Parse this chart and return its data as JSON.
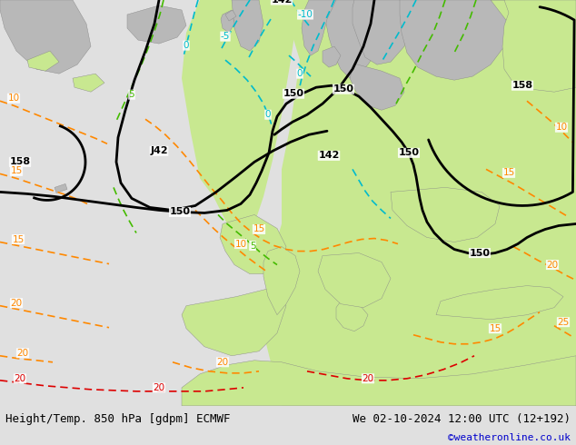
{
  "title_left": "Height/Temp. 850 hPa [gdpm] ECMWF",
  "title_right": "We 02-10-2024 12:00 UTC (12+192)",
  "watermark": "©weatheronline.co.uk",
  "bg_color": "#e0e0e0",
  "sea_color": "#d0d0d0",
  "land_gray_color": "#b8b8b8",
  "land_green_color": "#c8e890",
  "land_green2_color": "#b0dc60",
  "bottom_bar_color": "#c8c8c8",
  "label_color_black": "#000000",
  "label_color_cyan": "#00bbcc",
  "label_color_green": "#44bb00",
  "label_color_orange": "#ff8800",
  "label_color_red": "#dd0000",
  "label_color_blue": "#0000cc",
  "title_fontsize": 9.0,
  "watermark_fontsize": 8,
  "annotation_fontsize": 8.0,
  "fig_width": 6.34,
  "fig_height": 4.9
}
